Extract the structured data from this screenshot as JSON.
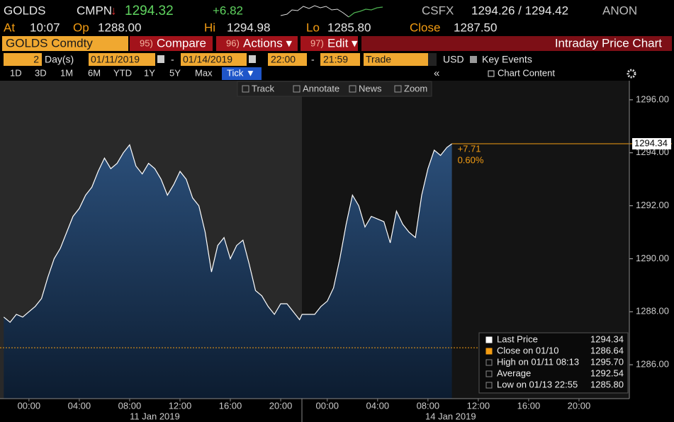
{
  "header": {
    "ticker": "GOLDS",
    "source": "CMPN",
    "arrow": "↓",
    "last": "1294.32",
    "change": "+6.82",
    "exchange": "CSFX",
    "bid_ask": "1294.26 / 1294.42",
    "condition": "ANON"
  },
  "quote": [
    {
      "label": "At",
      "value": "10:07"
    },
    {
      "label": "Op",
      "value": "1288.00"
    },
    {
      "label": "Hi",
      "value": "1294.98"
    },
    {
      "label": "Lo",
      "value": "1285.80"
    },
    {
      "label": "Close",
      "value": "1287.50"
    }
  ],
  "toolbar": {
    "security": "GOLDS Comdty",
    "buttons": [
      {
        "num": "95)",
        "label": "Compare"
      },
      {
        "num": "96)",
        "label": "Actions ▾"
      },
      {
        "num": "97)",
        "label": "Edit ▾"
      }
    ],
    "title": "Intraday Price Chart"
  },
  "range": {
    "days": "2",
    "unit": "Day(s)",
    "start_date": "01/11/2019",
    "separator": "-",
    "end_date": "01/14/2019",
    "start_time": "22:00",
    "end_time": "21:59",
    "field": "Trade",
    "currency": "USD",
    "key_events": "Key Events"
  },
  "periods": [
    "1D",
    "3D",
    "1M",
    "6M",
    "YTD",
    "1Y",
    "5Y",
    "Max",
    "Tick ▼"
  ],
  "selected_period": 8,
  "chart_content": "Chart Content",
  "chart_tools": [
    "Track",
    "Annotate",
    "News",
    "Zoom"
  ],
  "chart_data": {
    "type": "area",
    "x": [
      -2,
      -1.5,
      -1,
      -0.5,
      0,
      0.5,
      1,
      1.5,
      2,
      2.5,
      3,
      3.5,
      4,
      4.5,
      5,
      5.5,
      6,
      6.5,
      7,
      7.5,
      8,
      8.5,
      9,
      9.5,
      10,
      10.5,
      11,
      11.5,
      12,
      12.5,
      13,
      13.5,
      14,
      14.5,
      15,
      15.5,
      16,
      16.5,
      17,
      17.5,
      18,
      18.5,
      19,
      19.5,
      20,
      20.5,
      21,
      21.5,
      21.7,
      22.2,
      22.7,
      23.2,
      23.7,
      24.2,
      24.7,
      25.2,
      25.7,
      26.2,
      26.7,
      27.2,
      27.7,
      28.2,
      28.7,
      29.2,
      29.7,
      30.2,
      30.7,
      31.2,
      31.7,
      32.2,
      32.7,
      33.2,
      33.6
    ],
    "series": [
      {
        "name": "Last Price",
        "color": "#ffffff",
        "values": [
          1287.8,
          1287.6,
          1287.9,
          1287.8,
          1288.0,
          1288.2,
          1288.5,
          1289.3,
          1290.0,
          1290.4,
          1291.0,
          1291.6,
          1291.9,
          1292.4,
          1292.7,
          1293.3,
          1293.8,
          1293.4,
          1293.6,
          1294.0,
          1294.3,
          1293.5,
          1293.2,
          1293.6,
          1293.4,
          1293.0,
          1292.4,
          1292.8,
          1293.3,
          1293.0,
          1292.3,
          1292.0,
          1291.0,
          1289.5,
          1290.5,
          1290.8,
          1290.0,
          1290.5,
          1290.7,
          1289.8,
          1288.8,
          1288.6,
          1288.2,
          1287.9,
          1288.3,
          1288.3,
          1288.0,
          1287.7,
          1287.9,
          1287.9,
          1287.9,
          1288.2,
          1288.4,
          1288.9,
          1290.0,
          1291.3,
          1292.4,
          1292.0,
          1291.2,
          1291.6,
          1291.5,
          1291.4,
          1290.6,
          1291.8,
          1291.3,
          1291.0,
          1290.8,
          1292.4,
          1293.4,
          1294.1,
          1293.9,
          1294.2,
          1294.34
        ]
      }
    ],
    "xlim": [
      -2.3,
      47.7
    ],
    "xticks": [
      {
        "value": 0,
        "label": "00:00"
      },
      {
        "value": 4,
        "label": "04:00"
      },
      {
        "value": 8,
        "label": "08:00"
      },
      {
        "value": 12,
        "label": "12:00"
      },
      {
        "value": 16,
        "label": "16:00"
      },
      {
        "value": 20,
        "label": "20:00"
      },
      {
        "value": 23.7,
        "label": "00:00"
      },
      {
        "value": 27.7,
        "label": "04:00"
      },
      {
        "value": 31.7,
        "label": "08:00"
      },
      {
        "value": 35.7,
        "label": "12:00"
      },
      {
        "value": 39.7,
        "label": "16:00"
      },
      {
        "value": 43.7,
        "label": "20:00"
      }
    ],
    "xdates": [
      {
        "value": 10,
        "label": "11 Jan 2019"
      },
      {
        "value": 33.5,
        "label": "14 Jan 2019"
      }
    ],
    "ylim": [
      1284.72,
      1296.72
    ],
    "yticks": [
      {
        "value": 1286,
        "label": "1286.00"
      },
      {
        "value": 1288,
        "label": "1288.00"
      },
      {
        "value": 1290,
        "label": "1290.00"
      },
      {
        "value": 1292,
        "label": "1292.00"
      },
      {
        "value": 1294,
        "label": "1294.00"
      },
      {
        "value": 1296,
        "label": "1296.00"
      }
    ],
    "change_labels": [
      "+7.71",
      "0.60%"
    ],
    "legend": [
      {
        "name": "Last Price",
        "value": 1294.34
      },
      {
        "name": "Close on 01/10",
        "value": 1286.64
      },
      {
        "name": "High on 01/11 08:13",
        "value": 1295.7,
        "label": "1295.70"
      },
      {
        "name": "Average",
        "value": 1292.54
      },
      {
        "name": "Low on 01/13 22:55",
        "value": 1285.8,
        "label": "1285.80"
      }
    ]
  }
}
